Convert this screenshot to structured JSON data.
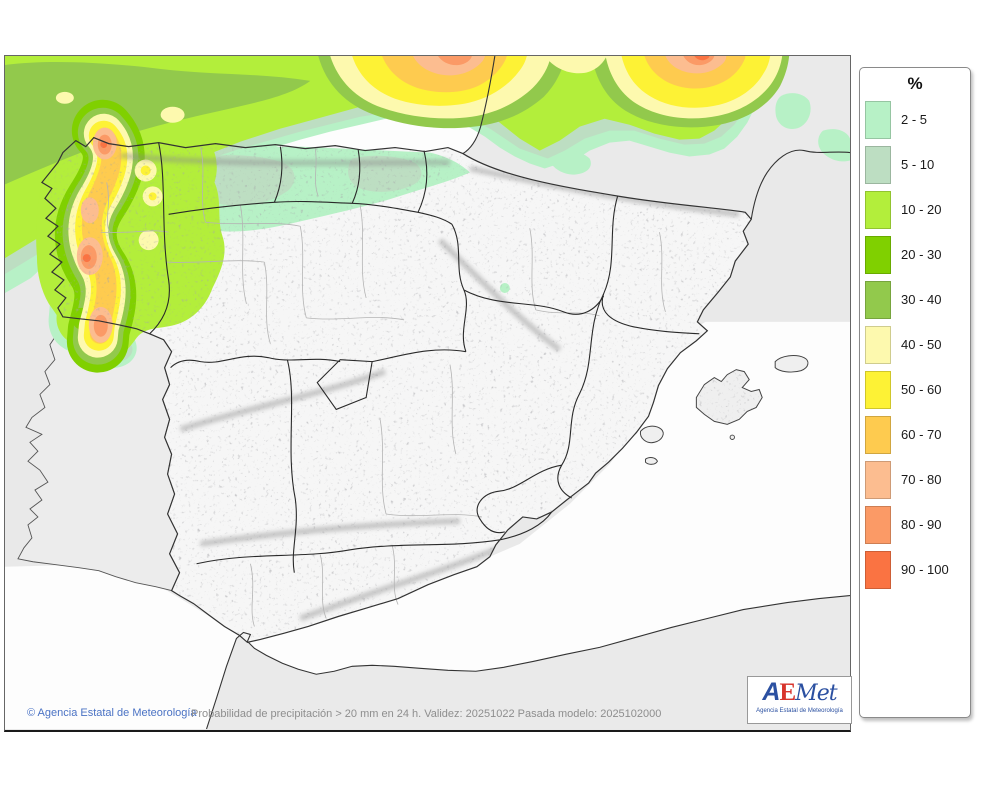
{
  "map": {
    "caption_copyright": "© Agencia Estatal de Meteorología",
    "caption_info": "Probabilidad de precipitación > 20 mm en 24 h. Validez: 20251022 Pasada modelo: 2025102000",
    "sea_color": "#e9e9e9",
    "domain_white": "#fdfdfd",
    "spain_fill": "#f6f6f6"
  },
  "legend": {
    "title": "%",
    "items": [
      {
        "key": "p2_5",
        "label": "2 - 5",
        "color": "#b7f1c6"
      },
      {
        "key": "p5_10",
        "label": "5 - 10",
        "color": "#bddec2"
      },
      {
        "key": "p10_20",
        "label": "10 - 20",
        "color": "#b3ee3b"
      },
      {
        "key": "p20_30",
        "label": "20 - 30",
        "color": "#80d000"
      },
      {
        "key": "p30_40",
        "label": "30 - 40",
        "color": "#92c94c"
      },
      {
        "key": "p40_50",
        "label": "40 - 50",
        "color": "#fdf9ae"
      },
      {
        "key": "p50_60",
        "label": "50 - 60",
        "color": "#fdf235"
      },
      {
        "key": "p60_70",
        "label": "60 - 70",
        "color": "#fecb4f"
      },
      {
        "key": "p70_80",
        "label": "70 - 80",
        "color": "#fcbd90"
      },
      {
        "key": "p80_90",
        "label": "80 - 90",
        "color": "#fb9a66"
      },
      {
        "key": "p90_100",
        "label": "90 - 100",
        "color": "#fa7342"
      }
    ]
  },
  "logo": {
    "part_a": "A",
    "part_e": "E",
    "part_met": "Met",
    "subtitle": "Agencia Estatal de Meteorología",
    "blue": "#2b50a1",
    "red": "#d8342c"
  }
}
